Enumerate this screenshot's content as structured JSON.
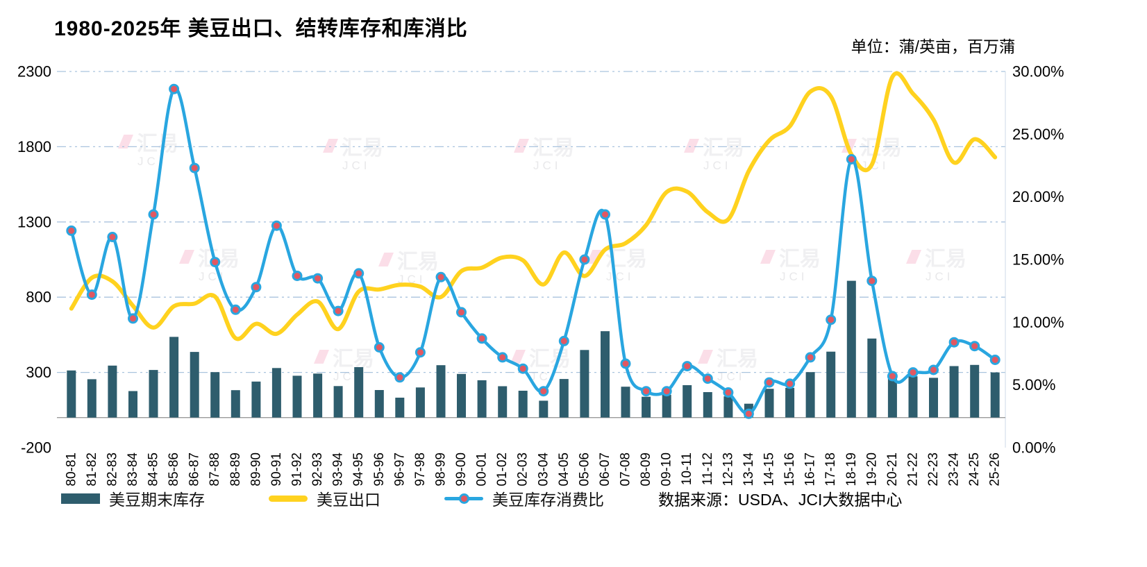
{
  "title": "1980-2025年 美豆出口、结转库存和库消比",
  "unit_label": "单位：蒲/英亩，百万蒲",
  "source_label": "数据来源：USDA、JCI大数据中心",
  "watermark": {
    "text": "汇易",
    "sub": "JCI"
  },
  "colors": {
    "bar": "#2e5d6d",
    "export_line": "#ffd21f",
    "ratio_line": "#29a6e0",
    "ratio_marker": "#e15862",
    "grid": "#a9c3de",
    "zero_line": "#9a9a9a",
    "axis_text": "#000000"
  },
  "legend": [
    {
      "label": "美豆期末库存"
    },
    {
      "label": "美豆出口"
    },
    {
      "label": "美豆库存消费比"
    }
  ],
  "chart_data": {
    "type": "bar+line",
    "title": "1980-2025年 美豆出口、结转库存和库消比",
    "source": "数据来源：USDA、JCI大数据中心",
    "legend_position": "bottom",
    "grid": "horizontal dash-dot",
    "categories": [
      "80-81",
      "81-82",
      "82-83",
      "83-84",
      "84-85",
      "85-86",
      "86-87",
      "87-88",
      "88-89",
      "89-90",
      "90-91",
      "91-92",
      "92-93",
      "93-94",
      "94-95",
      "95-96",
      "96-97",
      "97-98",
      "98-99",
      "99-00",
      "00-01",
      "01-02",
      "02-03",
      "03-04",
      "04-05",
      "05-06",
      "06-07",
      "07-08",
      "08-09",
      "09-10",
      "10-11",
      "11-12",
      "12-13",
      "13-14",
      "14-15",
      "15-16",
      "16-17",
      "17-18",
      "18-19",
      "19-20",
      "20-21",
      "21-22",
      "22-23",
      "23-24",
      "24-25",
      "25-26"
    ],
    "series": [
      {
        "name": "美豆期末库存",
        "type": "bar",
        "axis": "left",
        "values": [
          313,
          255,
          345,
          176,
          316,
          536,
          436,
          302,
          182,
          239,
          329,
          278,
          292,
          209,
          335,
          183,
          132,
          200,
          348,
          290,
          248,
          208,
          178,
          112,
          256,
          449,
          574,
          205,
          138,
          151,
          215,
          169,
          141,
          92,
          191,
          197,
          302,
          438,
          909,
          525,
          257,
          274,
          264,
          342,
          350,
          300
        ]
      },
      {
        "name": "美豆出口",
        "type": "line",
        "axis": "left",
        "smooth": true,
        "values": [
          724,
          929,
          905,
          743,
          598,
          740,
          757,
          804,
          527,
          623,
          557,
          684,
          771,
          588,
          838,
          851,
          882,
          870,
          801,
          973,
          996,
          1064,
          1045,
          885,
          1097,
          940,
          1116,
          1159,
          1279,
          1499,
          1501,
          1365,
          1317,
          1638,
          1842,
          1936,
          2166,
          2134,
          1748,
          1682,
          2265,
          2152,
          1980,
          1695,
          1850,
          1730
        ]
      },
      {
        "name": "美豆库存消费比",
        "type": "line",
        "axis": "right",
        "smooth": true,
        "marker": true,
        "values": [
          17.3,
          12.2,
          16.8,
          10.3,
          18.6,
          28.6,
          22.3,
          14.8,
          11.0,
          12.8,
          17.7,
          13.7,
          13.5,
          10.9,
          13.9,
          8.0,
          5.6,
          7.6,
          13.6,
          10.8,
          8.7,
          7.2,
          6.3,
          4.5,
          8.5,
          15.0,
          18.6,
          6.7,
          4.5,
          4.5,
          6.5,
          5.5,
          4.4,
          2.7,
          5.2,
          5.1,
          7.2,
          10.2,
          23.0,
          13.3,
          5.7,
          6.0,
          6.2,
          8.4,
          8.1,
          7.0
        ]
      }
    ],
    "left_axis": {
      "min": -200,
      "max": 2300,
      "ticks": [
        2300,
        1800,
        1300,
        800,
        300,
        -200
      ]
    },
    "right_axis": {
      "min": 0,
      "max": 30,
      "tick_values": [
        30,
        25,
        20,
        15,
        10,
        5,
        0
      ],
      "ticks": [
        "30.00%",
        "25.00%",
        "20.00%",
        "15.00%",
        "10.00%",
        "5.00%",
        "0.00%"
      ]
    }
  }
}
